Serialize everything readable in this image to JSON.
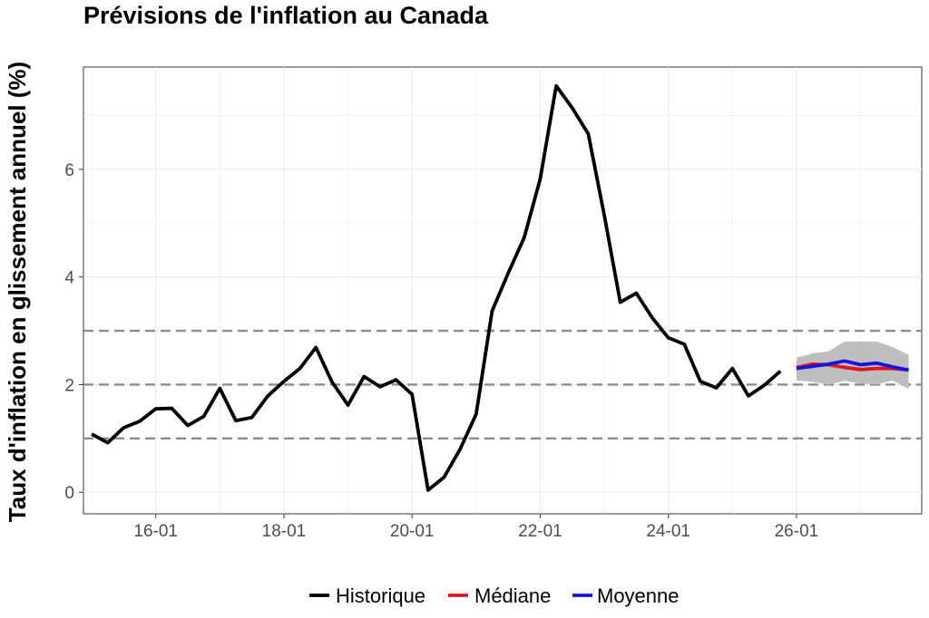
{
  "chart_data": {
    "type": "line",
    "title": "Prévisions de l'inflation au Canada",
    "xlabel": "",
    "ylabel": "Taux d'inflation en glissement annuel (%)",
    "x_tick_labels": [
      "16-01",
      "18-01",
      "20-01",
      "22-01",
      "24-01",
      "26-01"
    ],
    "y_tick_labels": [
      "0",
      "2",
      "4",
      "6"
    ],
    "y_ticks": [
      0,
      2,
      4,
      6
    ],
    "ylim": [
      -0.4,
      7.9
    ],
    "xlim": [
      "2014-11-15",
      "2027-12-15"
    ],
    "grid": true,
    "legend_position": "bottom",
    "reference_lines": [
      1,
      2,
      3
    ],
    "series": [
      {
        "name": "Historique",
        "color": "#000000",
        "x": [
          "2015-01",
          "2015-04",
          "2015-07",
          "2015-10",
          "2016-01",
          "2016-04",
          "2016-07",
          "2016-10",
          "2017-01",
          "2017-04",
          "2017-07",
          "2017-10",
          "2018-01",
          "2018-04",
          "2018-07",
          "2018-10",
          "2019-01",
          "2019-04",
          "2019-07",
          "2019-10",
          "2020-01",
          "2020-04",
          "2020-07",
          "2020-10",
          "2021-01",
          "2021-04",
          "2021-07",
          "2021-10",
          "2022-01",
          "2022-04",
          "2022-07",
          "2022-10",
          "2023-01",
          "2023-04",
          "2023-07",
          "2023-10",
          "2024-01",
          "2024-04",
          "2024-07",
          "2024-10",
          "2025-01",
          "2025-04",
          "2025-07",
          "2025-10"
        ],
        "values": [
          1.08,
          0.92,
          1.2,
          1.32,
          1.55,
          1.56,
          1.24,
          1.41,
          1.93,
          1.33,
          1.39,
          1.79,
          2.06,
          2.3,
          2.69,
          2.05,
          1.62,
          2.15,
          1.96,
          2.09,
          1.82,
          0.04,
          0.28,
          0.8,
          1.45,
          3.37,
          4.07,
          4.73,
          5.82,
          7.55,
          7.14,
          6.66,
          5.15,
          3.53,
          3.7,
          3.24,
          2.87,
          2.75,
          2.06,
          1.94,
          2.3,
          1.79,
          1.99,
          2.25
        ]
      },
      {
        "name": "Médiane",
        "color": "#e0141c",
        "x": [
          "2026-01",
          "2026-04",
          "2026-07",
          "2026-10",
          "2027-01",
          "2027-04",
          "2027-07",
          "2027-10"
        ],
        "values": [
          2.32,
          2.38,
          2.37,
          2.32,
          2.28,
          2.3,
          2.3,
          2.27
        ]
      },
      {
        "name": "Moyenne",
        "color": "#1414e0",
        "x": [
          "2026-01",
          "2026-04",
          "2026-07",
          "2026-10",
          "2027-01",
          "2027-04",
          "2027-07",
          "2027-10"
        ],
        "values": [
          2.3,
          2.34,
          2.38,
          2.44,
          2.37,
          2.4,
          2.33,
          2.27
        ]
      }
    ],
    "band": {
      "color": "#bebebe",
      "x": [
        "2026-01",
        "2026-04",
        "2026-07",
        "2026-10",
        "2027-01",
        "2027-04",
        "2027-07",
        "2027-10"
      ],
      "upper": [
        2.5,
        2.58,
        2.62,
        2.8,
        2.8,
        2.8,
        2.7,
        2.55
      ],
      "lower": [
        2.08,
        2.05,
        2.0,
        2.07,
        2.02,
        2.0,
        2.08,
        1.92
      ]
    }
  }
}
